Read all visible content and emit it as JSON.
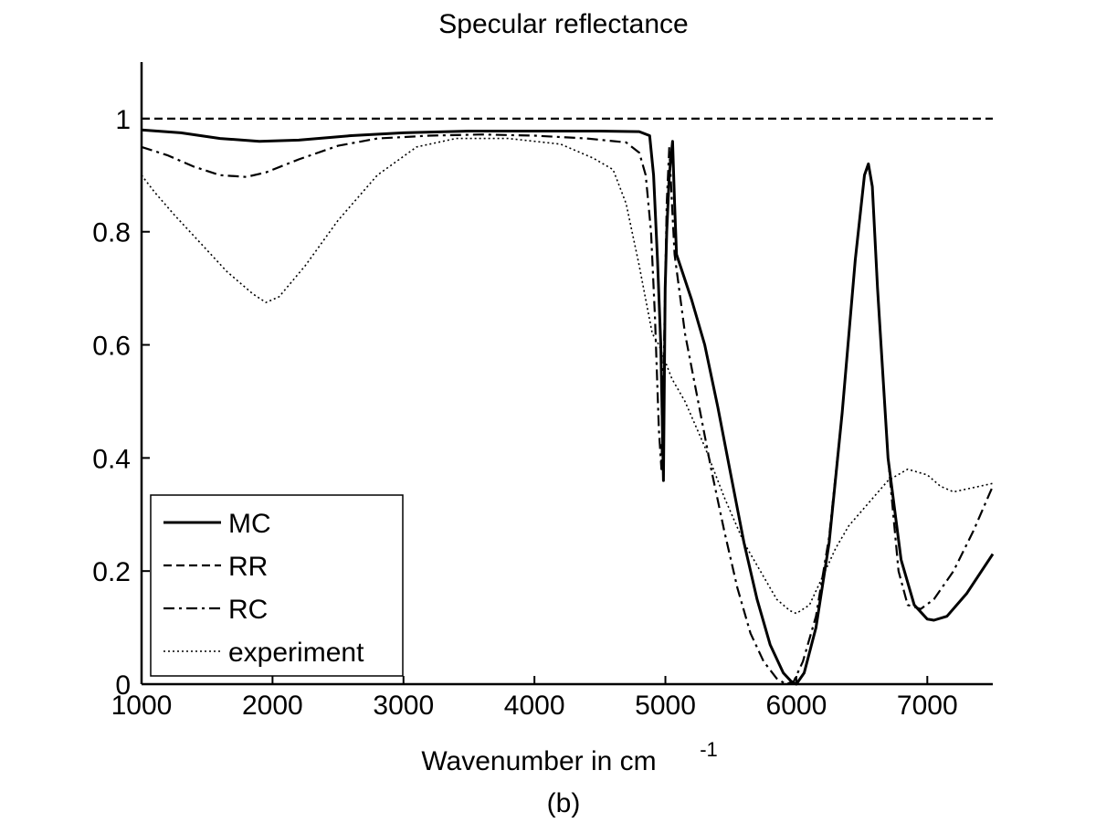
{
  "chart_data": {
    "type": "line",
    "title": "Specular reflectance",
    "xlabel": "Wavenumber in cm",
    "xlabel_superscript": "-1",
    "caption": "(b)",
    "xlim": [
      1000,
      7500
    ],
    "ylim": [
      0,
      1.1
    ],
    "xticks": [
      1000,
      2000,
      3000,
      4000,
      5000,
      6000,
      7000
    ],
    "yticks": [
      0,
      0.2,
      0.4,
      0.6,
      0.8,
      1
    ],
    "ytick_labels": [
      "0",
      "0.2",
      "0.4",
      "0.6",
      "0.8",
      "1"
    ],
    "legend_position": "bottom-left",
    "series": [
      {
        "name": "MC",
        "style": "solid",
        "points": [
          [
            1000,
            0.98
          ],
          [
            1300,
            0.975
          ],
          [
            1600,
            0.965
          ],
          [
            1900,
            0.96
          ],
          [
            2200,
            0.962
          ],
          [
            2600,
            0.97
          ],
          [
            3000,
            0.975
          ],
          [
            3500,
            0.978
          ],
          [
            4000,
            0.978
          ],
          [
            4500,
            0.978
          ],
          [
            4800,
            0.977
          ],
          [
            4880,
            0.97
          ],
          [
            4910,
            0.9
          ],
          [
            4940,
            0.75
          ],
          [
            4965,
            0.6
          ],
          [
            4985,
            0.36
          ],
          [
            4998,
            0.7
          ],
          [
            5010,
            0.8
          ],
          [
            5030,
            0.9
          ],
          [
            5055,
            0.96
          ],
          [
            5070,
            0.85
          ],
          [
            5085,
            0.76
          ],
          [
            5200,
            0.68
          ],
          [
            5300,
            0.6
          ],
          [
            5400,
            0.49
          ],
          [
            5500,
            0.37
          ],
          [
            5600,
            0.25
          ],
          [
            5700,
            0.15
          ],
          [
            5800,
            0.07
          ],
          [
            5900,
            0.02
          ],
          [
            5960,
            0.005
          ],
          [
            6000,
            0.0
          ],
          [
            6060,
            0.02
          ],
          [
            6150,
            0.1
          ],
          [
            6250,
            0.25
          ],
          [
            6350,
            0.48
          ],
          [
            6450,
            0.75
          ],
          [
            6520,
            0.9
          ],
          [
            6550,
            0.92
          ],
          [
            6580,
            0.88
          ],
          [
            6620,
            0.7
          ],
          [
            6700,
            0.4
          ],
          [
            6800,
            0.22
          ],
          [
            6900,
            0.14
          ],
          [
            7000,
            0.115
          ],
          [
            7050,
            0.113
          ],
          [
            7150,
            0.12
          ],
          [
            7300,
            0.16
          ],
          [
            7500,
            0.23
          ]
        ]
      },
      {
        "name": "RR",
        "style": "dashed",
        "points": [
          [
            1000,
            1.0
          ],
          [
            7500,
            1.0
          ]
        ]
      },
      {
        "name": "RC",
        "style": "dashdot",
        "points": [
          [
            1000,
            0.95
          ],
          [
            1200,
            0.935
          ],
          [
            1400,
            0.915
          ],
          [
            1600,
            0.9
          ],
          [
            1800,
            0.897
          ],
          [
            1950,
            0.905
          ],
          [
            2200,
            0.928
          ],
          [
            2500,
            0.952
          ],
          [
            2800,
            0.965
          ],
          [
            3200,
            0.97
          ],
          [
            3600,
            0.972
          ],
          [
            4000,
            0.97
          ],
          [
            4400,
            0.965
          ],
          [
            4700,
            0.958
          ],
          [
            4800,
            0.94
          ],
          [
            4850,
            0.9
          ],
          [
            4890,
            0.8
          ],
          [
            4920,
            0.65
          ],
          [
            4950,
            0.45
          ],
          [
            4970,
            0.38
          ],
          [
            4990,
            0.6
          ],
          [
            5010,
            0.85
          ],
          [
            5030,
            0.95
          ],
          [
            5050,
            0.85
          ],
          [
            5070,
            0.76
          ],
          [
            5150,
            0.62
          ],
          [
            5250,
            0.5
          ],
          [
            5350,
            0.38
          ],
          [
            5450,
            0.27
          ],
          [
            5550,
            0.17
          ],
          [
            5650,
            0.09
          ],
          [
            5750,
            0.04
          ],
          [
            5850,
            0.01
          ],
          [
            5920,
            0.0
          ],
          [
            5980,
            0.005
          ],
          [
            6050,
            0.04
          ],
          [
            6150,
            0.12
          ],
          [
            6250,
            0.26
          ],
          [
            6350,
            0.48
          ],
          [
            6450,
            0.75
          ],
          [
            6520,
            0.9
          ],
          [
            6550,
            0.92
          ],
          [
            6580,
            0.88
          ],
          [
            6620,
            0.7
          ],
          [
            6700,
            0.4
          ],
          [
            6780,
            0.2
          ],
          [
            6850,
            0.14
          ],
          [
            6950,
            0.133
          ],
          [
            7050,
            0.15
          ],
          [
            7200,
            0.2
          ],
          [
            7350,
            0.27
          ],
          [
            7500,
            0.35
          ]
        ]
      },
      {
        "name": "experiment",
        "style": "dotted",
        "points": [
          [
            1000,
            0.9
          ],
          [
            1100,
            0.87
          ],
          [
            1250,
            0.83
          ],
          [
            1450,
            0.78
          ],
          [
            1650,
            0.73
          ],
          [
            1850,
            0.69
          ],
          [
            1950,
            0.675
          ],
          [
            2050,
            0.685
          ],
          [
            2250,
            0.74
          ],
          [
            2500,
            0.82
          ],
          [
            2800,
            0.9
          ],
          [
            3100,
            0.95
          ],
          [
            3400,
            0.965
          ],
          [
            3800,
            0.965
          ],
          [
            4200,
            0.955
          ],
          [
            4450,
            0.93
          ],
          [
            4600,
            0.91
          ],
          [
            4700,
            0.85
          ],
          [
            4800,
            0.74
          ],
          [
            4850,
            0.68
          ],
          [
            4900,
            0.62
          ],
          [
            4950,
            0.6
          ],
          [
            5000,
            0.57
          ],
          [
            5050,
            0.54
          ],
          [
            5150,
            0.5
          ],
          [
            5300,
            0.42
          ],
          [
            5450,
            0.33
          ],
          [
            5600,
            0.25
          ],
          [
            5750,
            0.19
          ],
          [
            5850,
            0.15
          ],
          [
            5950,
            0.13
          ],
          [
            6000,
            0.125
          ],
          [
            6100,
            0.14
          ],
          [
            6200,
            0.19
          ],
          [
            6300,
            0.24
          ],
          [
            6400,
            0.28
          ],
          [
            6550,
            0.32
          ],
          [
            6700,
            0.36
          ],
          [
            6850,
            0.38
          ],
          [
            7000,
            0.37
          ],
          [
            7100,
            0.35
          ],
          [
            7200,
            0.34
          ],
          [
            7300,
            0.345
          ],
          [
            7400,
            0.35
          ],
          [
            7500,
            0.355
          ]
        ]
      }
    ]
  }
}
